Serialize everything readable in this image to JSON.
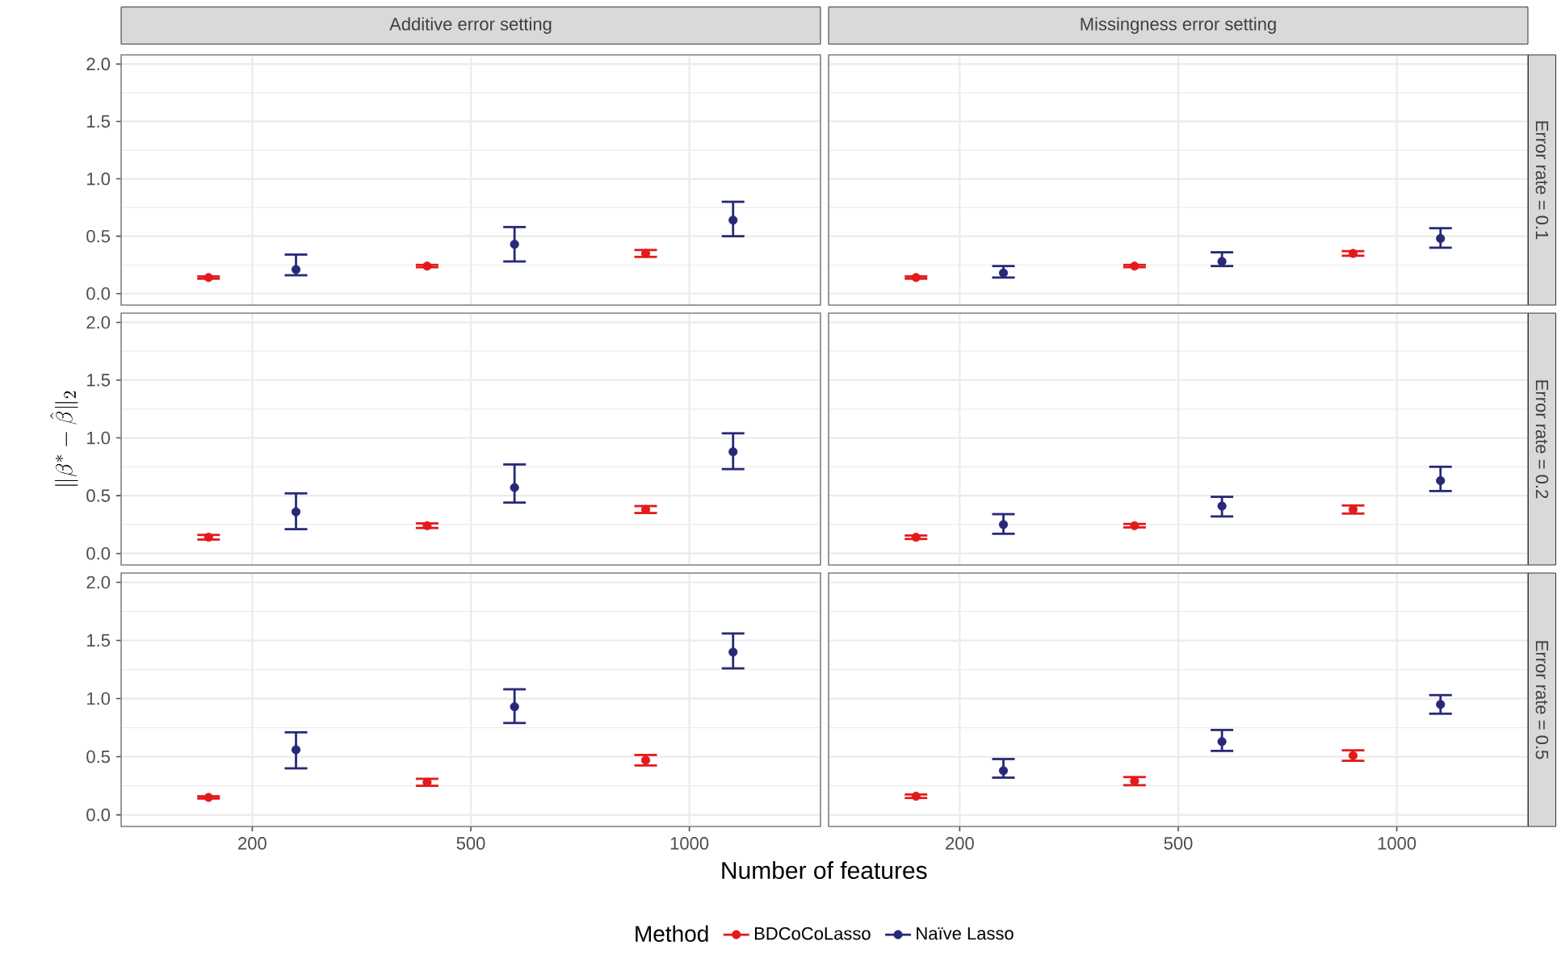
{
  "chart_data": [
    {
      "type": "scatter",
      "title": "Additive error setting",
      "categories": [
        "200",
        "500",
        "1000"
      ],
      "series": [
        {
          "color": "#e31a1c",
          "values": [
            0.14,
            0.24,
            0.35
          ],
          "errors": [
            0.01,
            0.01,
            0.03
          ]
        },
        {
          "color": "#282878",
          "values": [
            0.21,
            0.43,
            0.64
          ],
          "errors": [
            [
              0.16,
              0.34
            ],
            [
              0.28,
              0.58
            ],
            [
              0.5,
              0.8
            ]
          ]
        }
      ],
      "ylim": [
        -0.1,
        2.08
      ],
      "yticks": [
        {
          "value": 0,
          "label": "0.0"
        },
        {
          "value": 0.5,
          "label": "0.5"
        },
        {
          "value": 1,
          "label": "1.0"
        },
        {
          "value": 1.5,
          "label": "1.5"
        },
        {
          "value": 2,
          "label": "2.0"
        }
      ],
      "grid": true,
      "marker": "circle",
      "tick_labels": "y"
    },
    {
      "type": "scatter",
      "title": "Missingness error setting",
      "y2label": "Error rate = 0.1",
      "categories": [
        "200",
        "500",
        "1000"
      ],
      "series": [
        {
          "color": "#e31a1c",
          "values": [
            0.14,
            0.24,
            0.35
          ],
          "errors": [
            0.01,
            0.01,
            0.02
          ]
        },
        {
          "color": "#282878",
          "values": [
            0.18,
            0.28,
            0.48
          ],
          "errors": [
            [
              0.14,
              0.24
            ],
            [
              0.24,
              0.36
            ],
            [
              0.4,
              0.57
            ]
          ]
        }
      ],
      "ylim": [
        -0.1,
        2.08
      ],
      "yticks": [
        {
          "value": 0,
          "label": null
        },
        {
          "value": 0.5,
          "label": null
        },
        {
          "value": 1,
          "label": null
        },
        {
          "value": 1.5,
          "label": null
        },
        {
          "value": 2,
          "label": null
        }
      ],
      "grid": true,
      "marker": "circle",
      "tick_labels": false
    },
    {
      "type": "scatter",
      "ylabel": "\\|\\beta^{*}-\\hat{\\beta}\\|_{2}",
      "categories": [
        "200",
        "500",
        "1000"
      ],
      "series": [
        {
          "color": "#e31a1c",
          "values": [
            0.14,
            0.24,
            0.38
          ],
          "errors": [
            0.02,
            0.02,
            0.03
          ]
        },
        {
          "color": "#282878",
          "values": [
            0.36,
            0.57,
            0.88
          ],
          "errors": [
            [
              0.21,
              0.52
            ],
            [
              0.44,
              0.77
            ],
            [
              0.73,
              1.04
            ]
          ]
        }
      ],
      "ylim": [
        -0.1,
        2.08
      ],
      "yticks": [
        {
          "value": 0,
          "label": "0.0"
        },
        {
          "value": 0.5,
          "label": "0.5"
        },
        {
          "value": 1,
          "label": "1.0"
        },
        {
          "value": 1.5,
          "label": "1.5"
        },
        {
          "value": 2,
          "label": "2.0"
        }
      ],
      "grid": true,
      "marker": "circle",
      "tick_labels": "y"
    },
    {
      "type": "scatter",
      "y2label": "Error rate = 0.2",
      "categories": [
        "200",
        "500",
        "1000"
      ],
      "series": [
        {
          "color": "#e31a1c",
          "values": [
            0.14,
            0.24,
            0.38
          ],
          "errors": [
            0.015,
            0.015,
            0.035
          ]
        },
        {
          "color": "#282878",
          "values": [
            0.25,
            0.41,
            0.63
          ],
          "errors": [
            [
              0.17,
              0.34
            ],
            [
              0.32,
              0.49
            ],
            [
              0.54,
              0.75
            ]
          ]
        }
      ],
      "ylim": [
        -0.1,
        2.08
      ],
      "yticks": [
        {
          "value": 0,
          "label": null
        },
        {
          "value": 0.5,
          "label": null
        },
        {
          "value": 1,
          "label": null
        },
        {
          "value": 1.5,
          "label": null
        },
        {
          "value": 2,
          "label": null
        }
      ],
      "grid": true,
      "marker": "circle",
      "tick_labels": false
    },
    {
      "type": "scatter",
      "xlabel": "Number of features",
      "legend_title": "Method",
      "legend": "bottom",
      "categories": [
        "200",
        "500",
        "1000"
      ],
      "series": [
        {
          "name": "BDCoCoLasso",
          "color": "#e31a1c",
          "values": [
            0.15,
            0.28,
            0.47
          ],
          "errors": [
            0.01,
            0.03,
            0.045
          ]
        },
        {
          "name": "Naïve Lasso",
          "color": "#282878",
          "values": [
            0.56,
            0.93,
            1.4
          ],
          "errors": [
            [
              0.4,
              0.71
            ],
            [
              0.79,
              1.08
            ],
            [
              1.26,
              1.56
            ]
          ]
        }
      ],
      "ylim": [
        -0.1,
        2.08
      ],
      "yticks": [
        {
          "value": 0,
          "label": "0.0"
        },
        {
          "value": 0.5,
          "label": "0.5"
        },
        {
          "value": 1,
          "label": "1.0"
        },
        {
          "value": 1.5,
          "label": "1.5"
        },
        {
          "value": 2,
          "label": "2.0"
        }
      ],
      "grid": true,
      "marker": "circle"
    },
    {
      "type": "scatter",
      "y2label": "Error rate = 0.5",
      "categories": [
        "200",
        "500",
        "1000"
      ],
      "series": [
        {
          "color": "#e31a1c",
          "values": [
            0.16,
            0.29,
            0.51
          ],
          "errors": [
            0.015,
            0.035,
            0.045
          ]
        },
        {
          "color": "#282878",
          "values": [
            0.38,
            0.63,
            0.95
          ],
          "errors": [
            [
              0.32,
              0.48
            ],
            [
              0.55,
              0.73
            ],
            [
              0.87,
              1.03
            ]
          ]
        }
      ],
      "ylim": [
        -0.1,
        2.08
      ],
      "yticks": [
        {
          "value": 0,
          "label": null
        },
        {
          "value": 0.5,
          "label": null
        },
        {
          "value": 1,
          "label": null
        },
        {
          "value": 1.5,
          "label": null
        },
        {
          "value": 2,
          "label": null
        }
      ],
      "grid": true,
      "marker": "circle",
      "tick_labels": "x"
    }
  ]
}
